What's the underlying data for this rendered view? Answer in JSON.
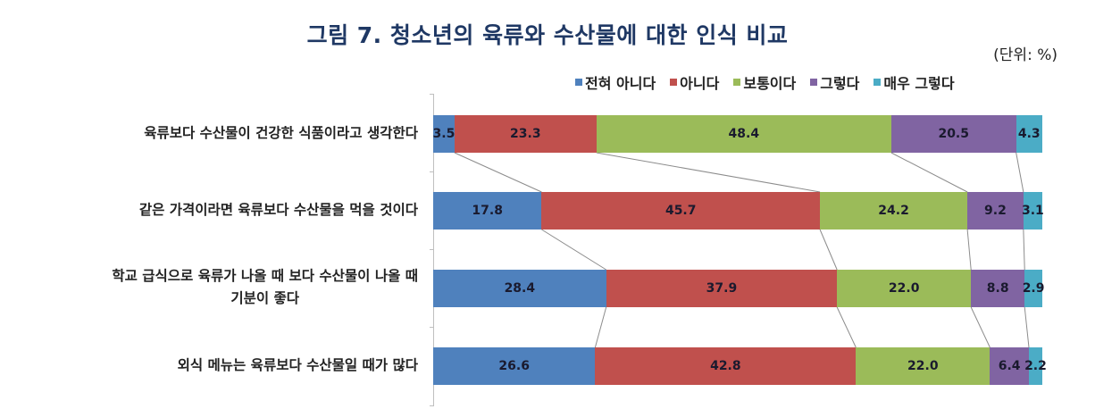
{
  "title": "그림 7. 청소년의 육류와 수산물에 대한 인식 비교",
  "unit": "(단위: %)",
  "legend": [
    {
      "label": "전혀 아니다",
      "color": "#4f81bd"
    },
    {
      "label": "아니다",
      "color": "#c0504d"
    },
    {
      "label": "보통이다",
      "color": "#9bbb59"
    },
    {
      "label": "그렇다",
      "color": "#8064a2"
    },
    {
      "label": "매우 그렇다",
      "color": "#4bacc6"
    }
  ],
  "categories": [
    "육류보다 수산물이 건강한 식품이라고 생각한다",
    "같은 가격이라면 육류보다 수산물을 먹을 것이다",
    "학교 급식으로 육류가 나올 때 보다 수산물이 나올 때\n기분이 좋다",
    "외식 메뉴는 육류보다 수산물일 때가 많다"
  ],
  "chart_data": {
    "type": "bar",
    "orientation": "horizontal",
    "stacked": "percent",
    "title": "그림 7. 청소년의 육류와 수산물에 대한 인식 비교",
    "unit_note": "(단위: %)",
    "xlabel": "",
    "ylabel": "",
    "xlim": [
      0,
      100
    ],
    "legend_position": "top-right",
    "grid": false,
    "series_lines": true,
    "categories": [
      "육류보다 수산물이 건강한 식품이라고 생각한다",
      "같은 가격이라면 육류보다 수산물을 먹을 것이다",
      "학교 급식으로 육류가 나올 때 보다 수산물이 나올 때 기분이 좋다",
      "외식 메뉴는 육류보다 수산물일 때가 많다"
    ],
    "series": [
      {
        "name": "전혀 아니다",
        "color": "#4f81bd",
        "values": [
          3.5,
          17.8,
          28.4,
          26.6
        ]
      },
      {
        "name": "아니다",
        "color": "#c0504d",
        "values": [
          23.3,
          45.7,
          37.9,
          42.8
        ]
      },
      {
        "name": "보통이다",
        "color": "#9bbb59",
        "values": [
          48.4,
          24.2,
          22.0,
          22.0
        ]
      },
      {
        "name": "그렇다",
        "color": "#8064a2",
        "values": [
          20.5,
          9.2,
          8.8,
          6.4
        ]
      },
      {
        "name": "매우 그렇다",
        "color": "#4bacc6",
        "values": [
          4.3,
          3.1,
          2.9,
          2.2
        ]
      }
    ]
  }
}
